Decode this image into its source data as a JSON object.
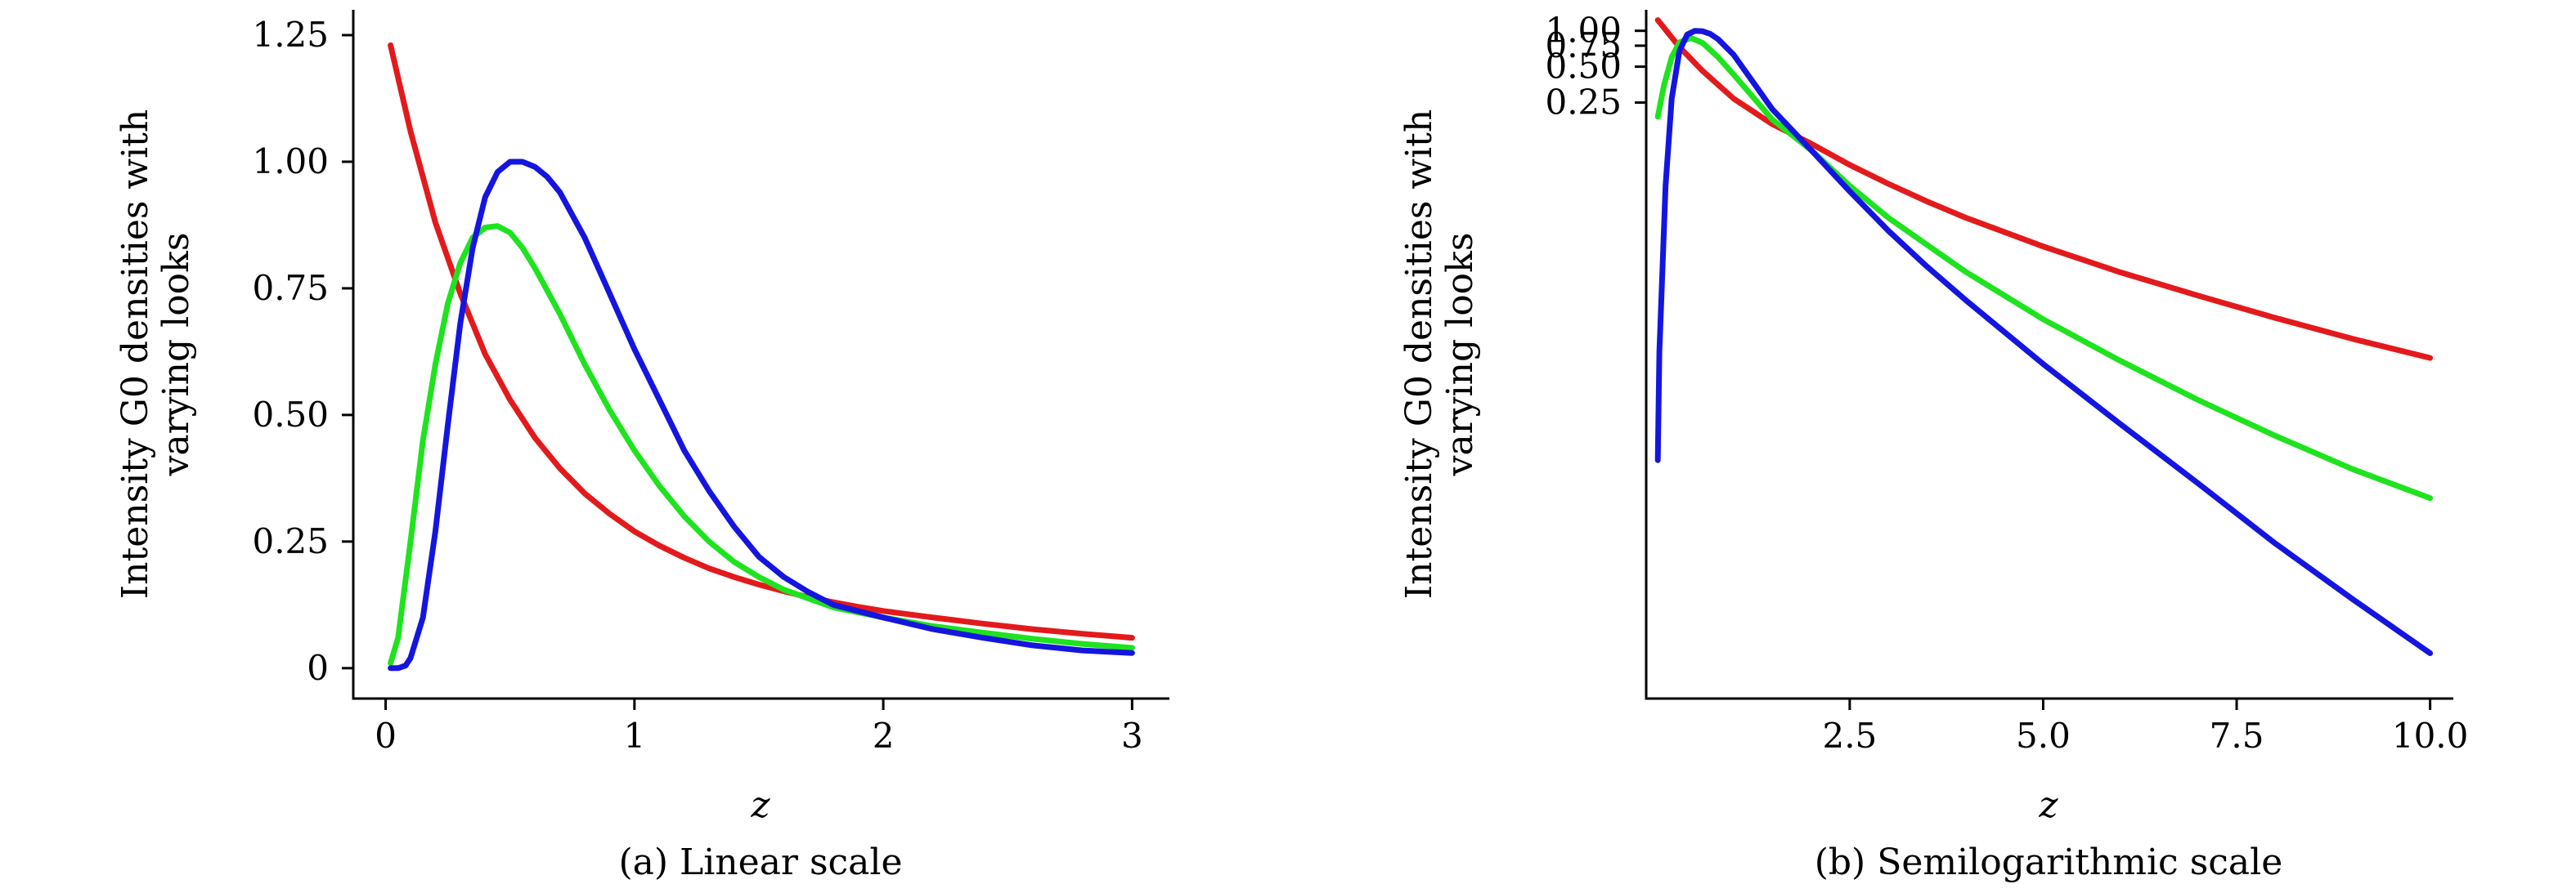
{
  "chart_data": [
    {
      "type": "line",
      "caption": "(a) Linear scale",
      "xlabel": "z",
      "ylabel": "Intensity G0 densities with varying looks",
      "xlim": [
        -0.13,
        3.15
      ],
      "ylim": [
        -0.06,
        1.3
      ],
      "xticks": [
        0,
        1,
        2,
        3
      ],
      "xtick_labels": [
        "0",
        "1",
        "2",
        "3"
      ],
      "yticks": [
        0,
        0.25,
        0.5,
        0.75,
        1.0,
        1.25
      ],
      "ytick_labels": [
        "0",
        "0.25",
        "0.50",
        "0.75",
        "1.00",
        "1.25"
      ],
      "grid": false,
      "series": [
        {
          "color": "#e31a1c",
          "x": [
            0.02,
            0.1,
            0.2,
            0.3,
            0.4,
            0.5,
            0.6,
            0.7,
            0.8,
            0.9,
            1.0,
            1.1,
            1.2,
            1.3,
            1.4,
            1.5,
            1.6,
            1.7,
            1.8,
            1.9,
            2.0,
            2.2,
            2.4,
            2.6,
            2.8,
            3.0
          ],
          "y": [
            1.23,
            1.06,
            0.88,
            0.74,
            0.62,
            0.53,
            0.455,
            0.395,
            0.345,
            0.305,
            0.27,
            0.242,
            0.218,
            0.197,
            0.18,
            0.165,
            0.152,
            0.14,
            0.13,
            0.121,
            0.113,
            0.1,
            0.088,
            0.077,
            0.068,
            0.06
          ]
        },
        {
          "color": "#1ee31e",
          "x": [
            0.02,
            0.05,
            0.1,
            0.15,
            0.2,
            0.25,
            0.3,
            0.35,
            0.4,
            0.45,
            0.5,
            0.55,
            0.6,
            0.7,
            0.8,
            0.9,
            1.0,
            1.1,
            1.2,
            1.3,
            1.4,
            1.5,
            1.6,
            1.8,
            2.0,
            2.2,
            2.4,
            2.6,
            2.8,
            3.0
          ],
          "y": [
            0.01,
            0.06,
            0.25,
            0.45,
            0.6,
            0.72,
            0.8,
            0.85,
            0.87,
            0.873,
            0.86,
            0.83,
            0.79,
            0.7,
            0.6,
            0.51,
            0.43,
            0.36,
            0.3,
            0.25,
            0.21,
            0.18,
            0.155,
            0.12,
            0.1,
            0.083,
            0.07,
            0.058,
            0.048,
            0.04
          ]
        },
        {
          "color": "#1515e0",
          "x": [
            0.02,
            0.05,
            0.08,
            0.1,
            0.15,
            0.2,
            0.25,
            0.3,
            0.35,
            0.4,
            0.45,
            0.5,
            0.55,
            0.6,
            0.65,
            0.7,
            0.8,
            0.9,
            1.0,
            1.1,
            1.2,
            1.3,
            1.4,
            1.5,
            1.6,
            1.7,
            1.8,
            2.0,
            2.2,
            2.4,
            2.6,
            2.8,
            3.0
          ],
          "y": [
            0.0,
            0.0,
            0.005,
            0.02,
            0.1,
            0.27,
            0.48,
            0.68,
            0.83,
            0.93,
            0.98,
            1.0,
            1.0,
            0.99,
            0.97,
            0.94,
            0.85,
            0.74,
            0.63,
            0.53,
            0.43,
            0.35,
            0.28,
            0.22,
            0.18,
            0.15,
            0.125,
            0.1,
            0.077,
            0.06,
            0.045,
            0.035,
            0.03
          ]
        }
      ]
    },
    {
      "type": "line",
      "caption": "(b) Semilogarithmic scale",
      "xlabel": "z",
      "ylabel": "Intensity G0 densities with varying looks",
      "yscale": "log",
      "xlim": [
        -0.13,
        10.3
      ],
      "ylim": [
        2.5e-06,
        1.5
      ],
      "xticks": [
        2.5,
        5.0,
        7.5,
        10.0
      ],
      "xtick_labels": [
        "2.5",
        "5.0",
        "7.5",
        "10.0"
      ],
      "yticks": [
        1.0,
        0.75,
        0.5,
        0.25
      ],
      "ytick_labels": [
        "1.00",
        "0.75",
        "0.50",
        "0.25"
      ],
      "grid": false,
      "series": [
        {
          "color": "#e31a1c",
          "x": [
            0.02,
            0.3,
            0.6,
            1.0,
            1.5,
            2.0,
            2.5,
            3.0,
            3.5,
            4.0,
            5.0,
            6.0,
            7.0,
            8.0,
            9.0,
            10.0
          ],
          "y": [
            1.23,
            0.73,
            0.46,
            0.27,
            0.165,
            0.113,
            0.075,
            0.052,
            0.037,
            0.027,
            0.0155,
            0.0094,
            0.006,
            0.0039,
            0.0026,
            0.0018
          ]
        },
        {
          "color": "#1ee31e",
          "x": [
            0.02,
            0.1,
            0.2,
            0.3,
            0.45,
            0.6,
            0.8,
            1.0,
            1.5,
            2.0,
            2.5,
            3.0,
            3.5,
            4.0,
            5.0,
            6.0,
            7.0,
            8.0,
            9.0,
            10.0
          ],
          "y": [
            0.19,
            0.35,
            0.6,
            0.8,
            0.87,
            0.79,
            0.6,
            0.43,
            0.18,
            0.1,
            0.05,
            0.027,
            0.016,
            0.0095,
            0.0038,
            0.0017,
            0.0008,
            0.0004,
            0.00021,
            0.00012
          ]
        },
        {
          "color": "#1515e0",
          "x": [
            0.02,
            0.04,
            0.08,
            0.12,
            0.2,
            0.3,
            0.4,
            0.5,
            0.6,
            0.7,
            0.8,
            1.0,
            1.5,
            2.0,
            2.5,
            3.0,
            3.5,
            4.0,
            5.0,
            6.0,
            7.0,
            8.0,
            9.0,
            10.0
          ],
          "y": [
            0.00025,
            0.002,
            0.01,
            0.05,
            0.27,
            0.68,
            0.93,
            1.0,
            0.99,
            0.94,
            0.85,
            0.63,
            0.22,
            0.1,
            0.045,
            0.021,
            0.0105,
            0.0055,
            0.0016,
            0.0005,
            0.00016,
            5e-05,
            1.7e-05,
            6e-06
          ]
        }
      ]
    }
  ]
}
